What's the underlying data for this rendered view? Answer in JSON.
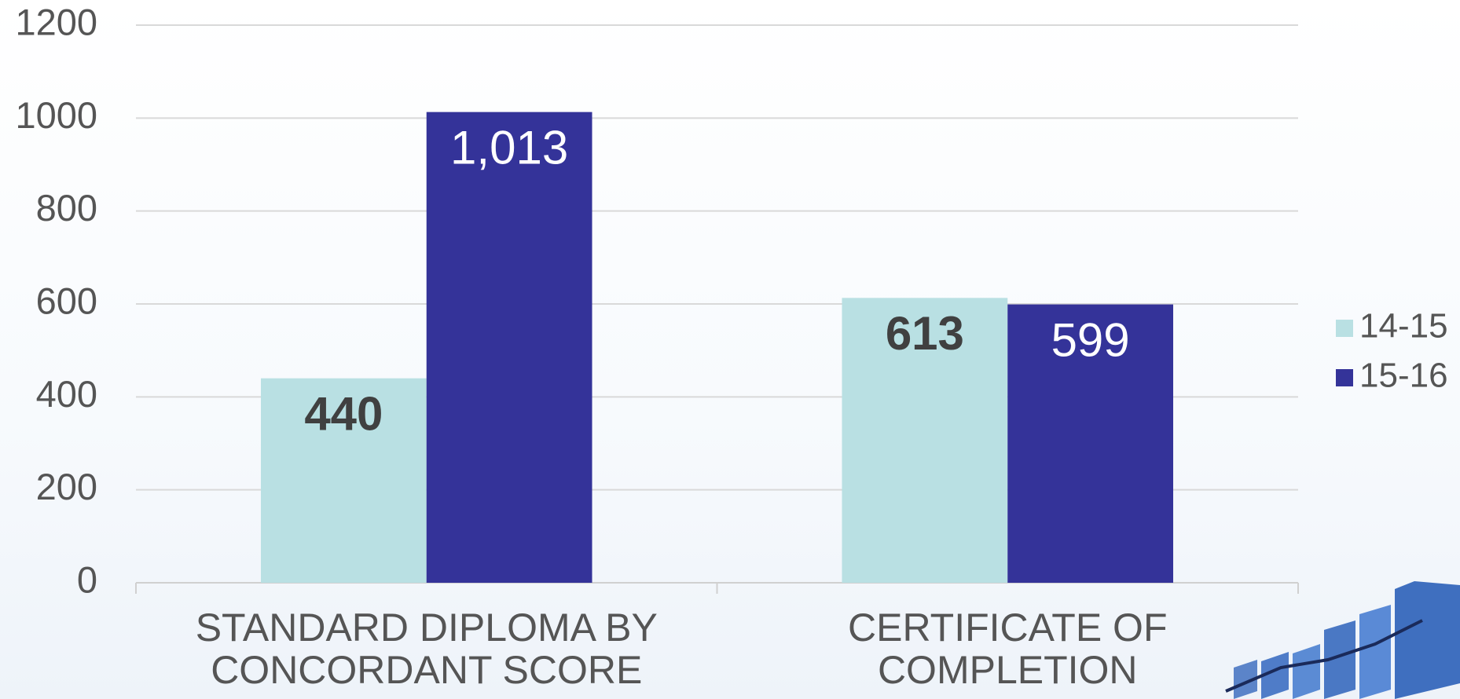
{
  "chart_data": {
    "type": "bar",
    "categories": [
      "STANDARD DIPLOMA BY\nCONCORDANT SCORE",
      "CERTIFICATE OF\nCOMPLETION"
    ],
    "series": [
      {
        "name": "14-15",
        "color": "#b9e0e3",
        "values": [
          440,
          613
        ]
      },
      {
        "name": "15-16",
        "color": "#343399",
        "values": [
          1013,
          599
        ],
        "value_labels": [
          "1,013",
          "599"
        ]
      }
    ],
    "ylim": [
      0,
      1200
    ],
    "yticks": [
      0,
      200,
      400,
      600,
      800,
      1000,
      1200
    ],
    "grid": true,
    "legend": "right"
  }
}
